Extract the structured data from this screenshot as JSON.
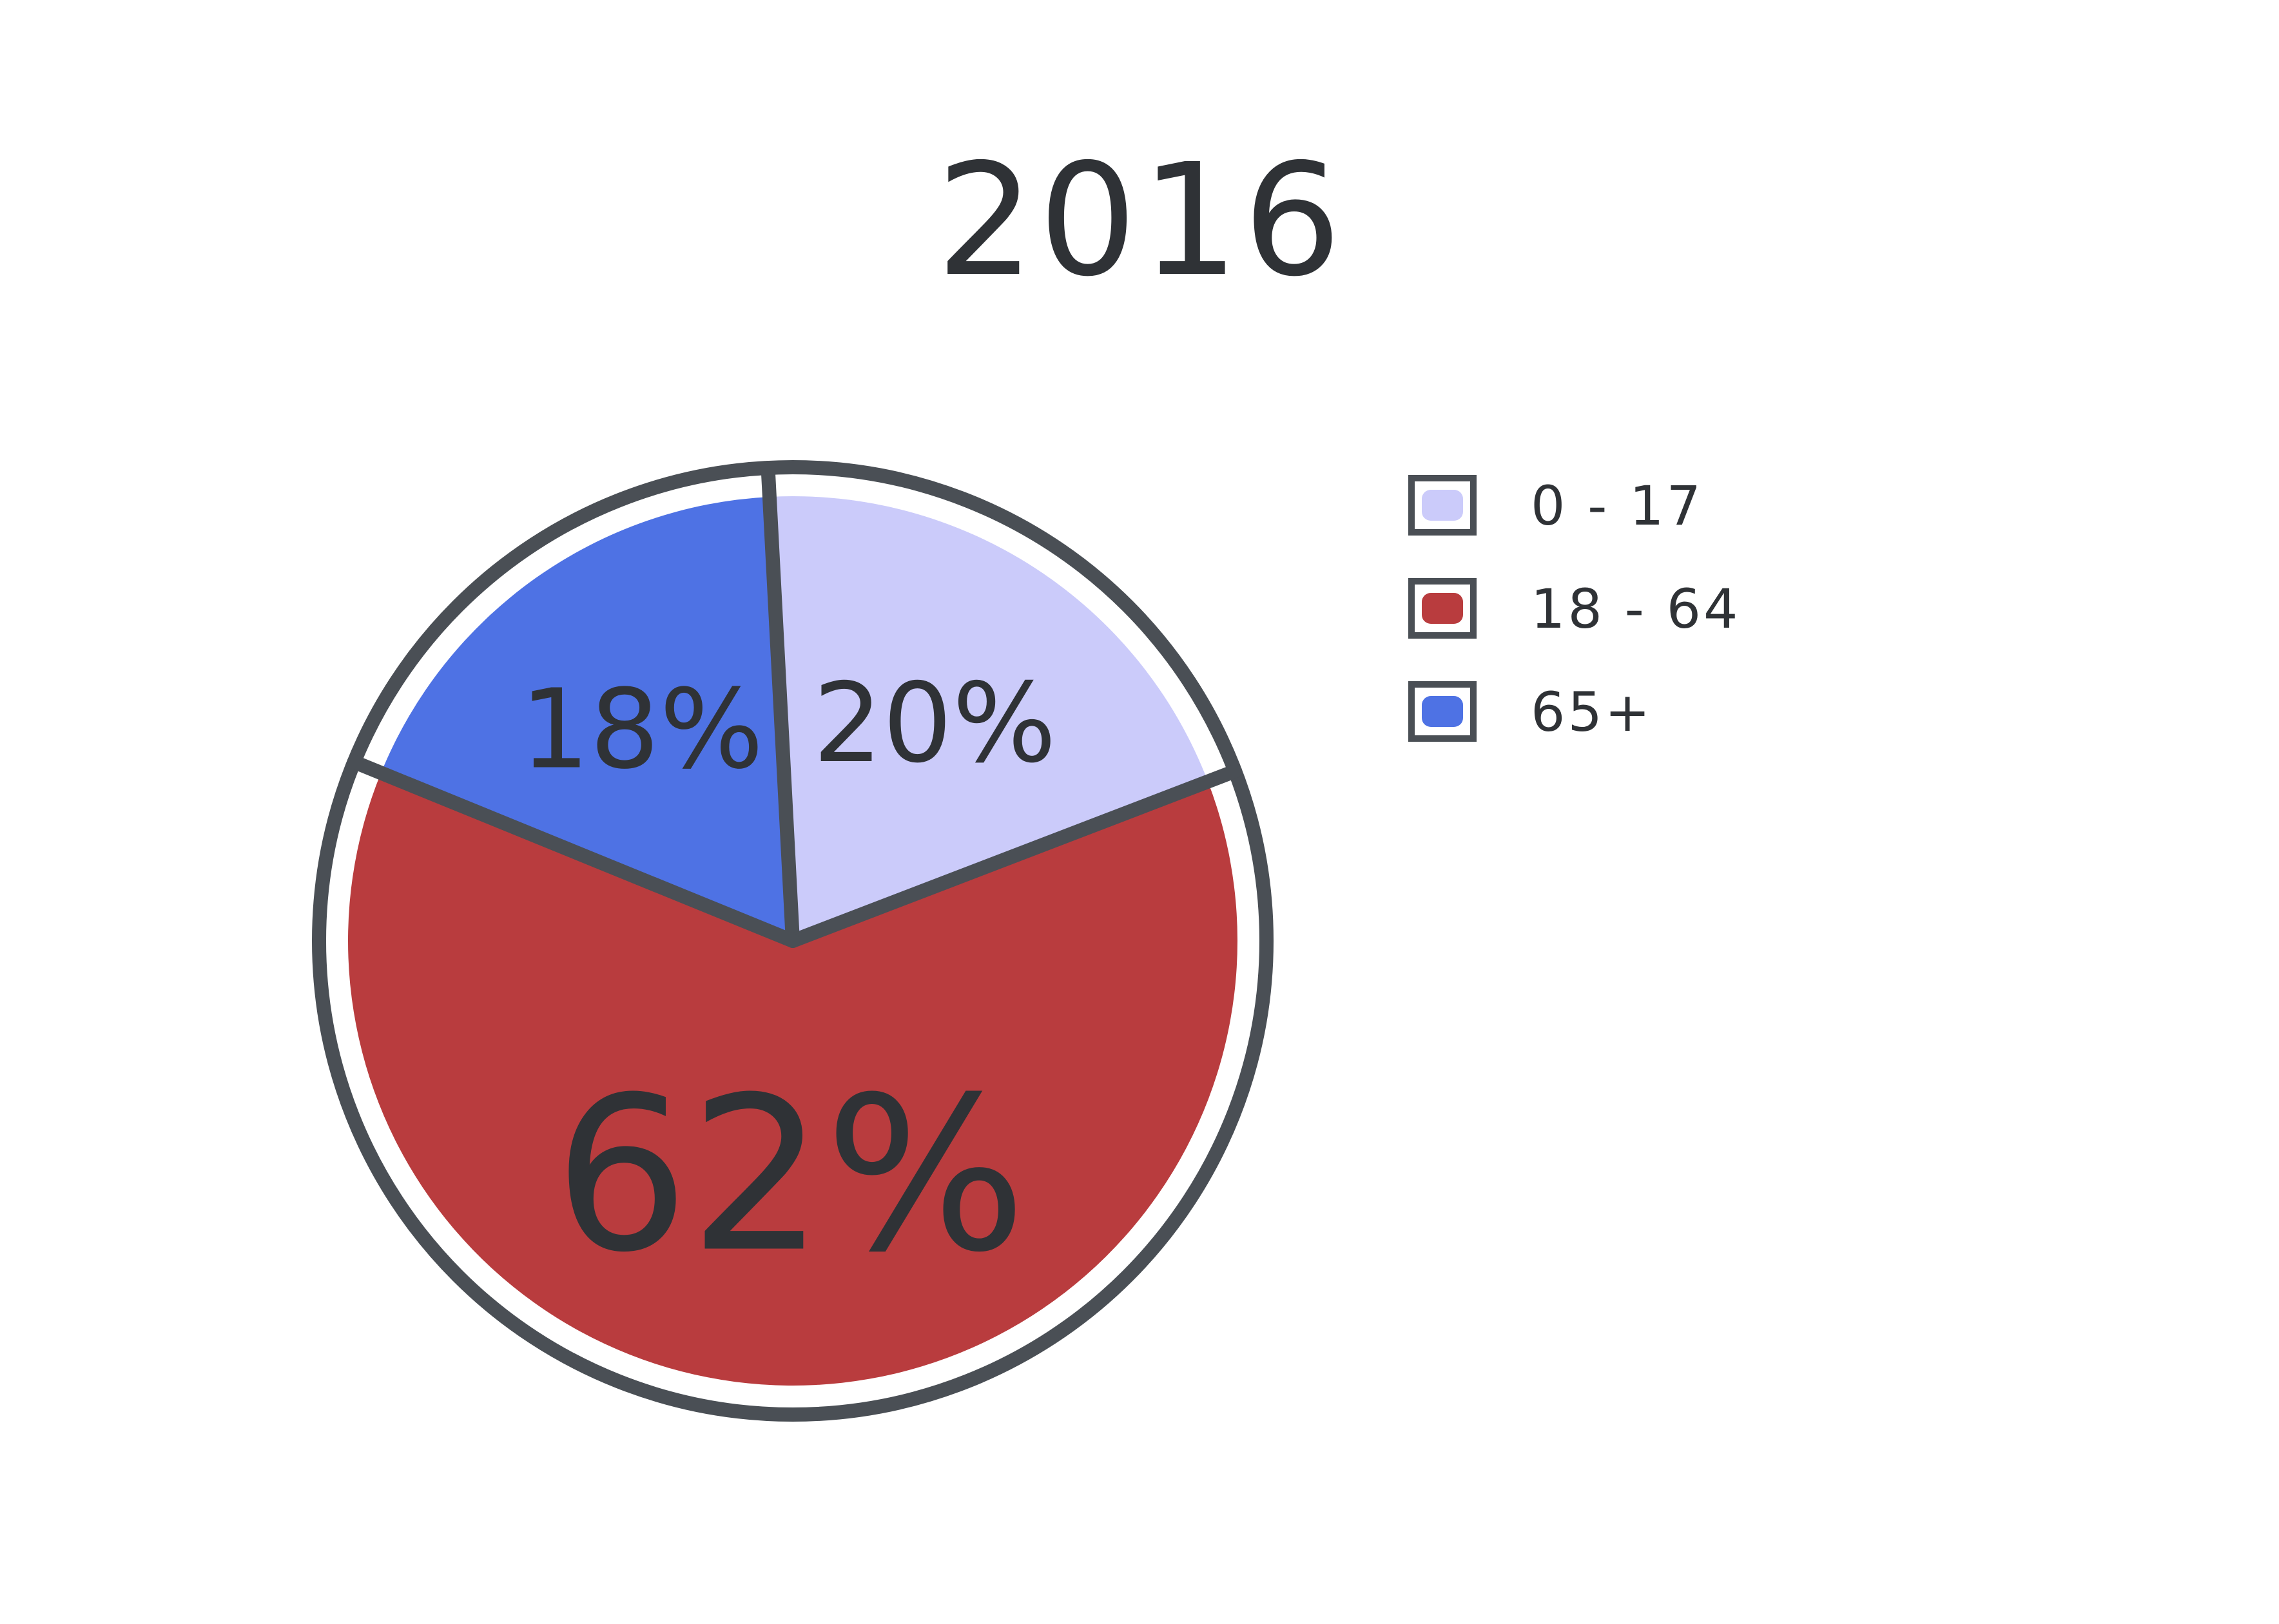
{
  "chart_data": {
    "type": "pie",
    "title": "2016",
    "slices": [
      {
        "label": "0 - 17",
        "value": 20,
        "display": "20%",
        "color": "#cbcbfa"
      },
      {
        "label": "18 - 64",
        "value": 62,
        "display": "62%",
        "color": "#b93c3e"
      },
      {
        "label": "65+",
        "value": 18,
        "display": "18%",
        "color": "#4e72e4"
      }
    ],
    "legend": {
      "position": "right"
    },
    "outline_color": "#4a4f55"
  }
}
